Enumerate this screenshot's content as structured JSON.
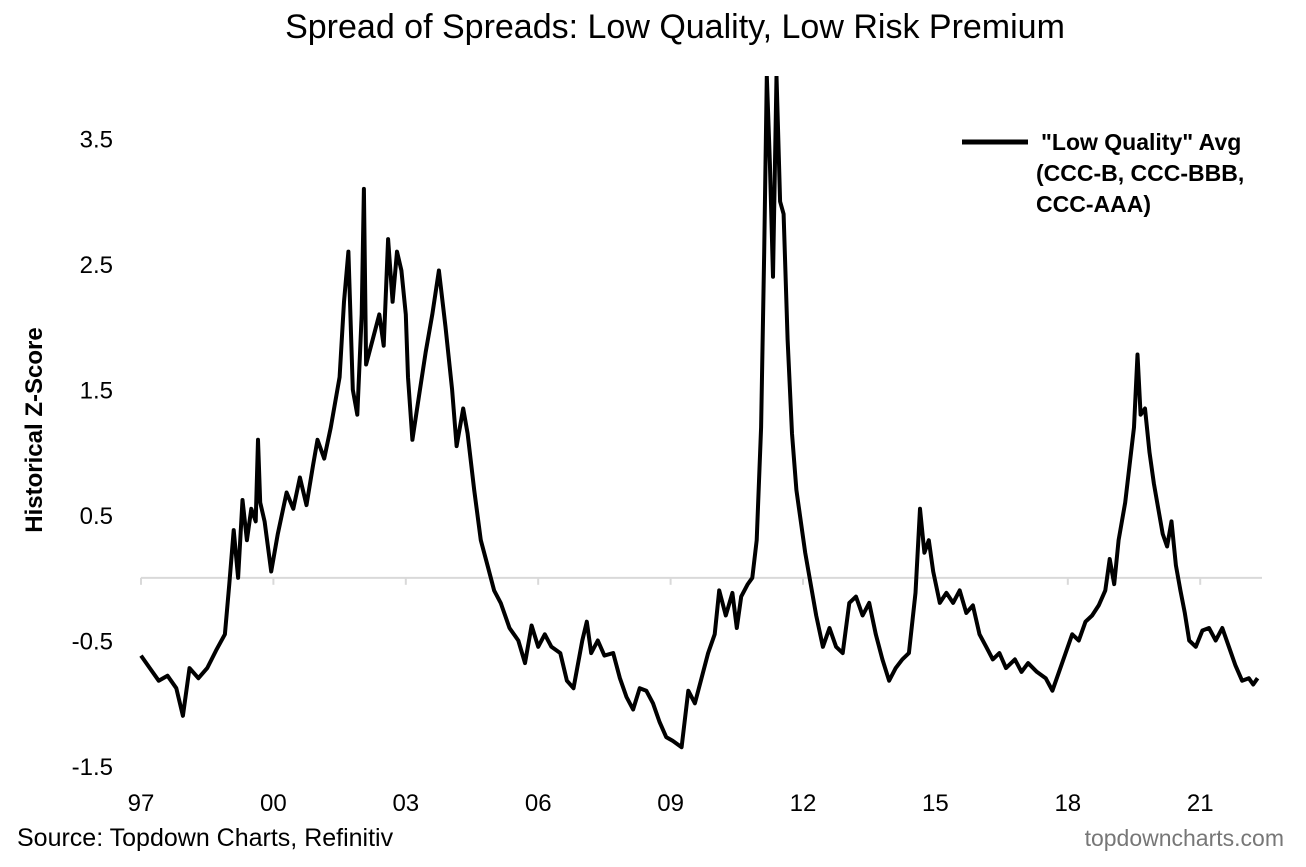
{
  "chart_data": {
    "type": "line",
    "title": "Spread of Spreads: Low Quality, Low Risk Premium",
    "ylabel": "Historical Z-Score",
    "xlabel": "",
    "ylim": [
      -1.5,
      4.0
    ],
    "xlim": [
      1997.0,
      2022.4
    ],
    "y_ticks": [
      {
        "value": 3.5,
        "label": "3.5"
      },
      {
        "value": 2.5,
        "label": "2.5"
      },
      {
        "value": 1.5,
        "label": "1.5"
      },
      {
        "value": 0.5,
        "label": "0.5"
      },
      {
        "value": -0.5,
        "label": "-0.5"
      },
      {
        "value": -1.5,
        "label": "-1.5"
      }
    ],
    "x_ticks": [
      {
        "value": 1997,
        "label": "97"
      },
      {
        "value": 2000,
        "label": "00"
      },
      {
        "value": 2003,
        "label": "03"
      },
      {
        "value": 2006,
        "label": "06"
      },
      {
        "value": 2009,
        "label": "09"
      },
      {
        "value": 2012,
        "label": "12"
      },
      {
        "value": 2015,
        "label": "15"
      },
      {
        "value": 2018,
        "label": "18"
      },
      {
        "value": 2021,
        "label": "21"
      }
    ],
    "zero_line": 0,
    "grid": false,
    "legend": {
      "placement": "top-right",
      "lines": [
        "\"Low Quality\" Avg",
        "(CCC-B, CCC-BBB,",
        "CCC-AAA)"
      ]
    },
    "series": [
      {
        "name": "\"Low Quality\" Avg",
        "color": "#000000",
        "points": [
          [
            1997.0,
            -0.62
          ],
          [
            1997.2,
            -0.72
          ],
          [
            1997.4,
            -0.82
          ],
          [
            1997.6,
            -0.78
          ],
          [
            1997.8,
            -0.88
          ],
          [
            1997.95,
            -1.1
          ],
          [
            1998.1,
            -0.72
          ],
          [
            1998.3,
            -0.8
          ],
          [
            1998.5,
            -0.72
          ],
          [
            1998.7,
            -0.58
          ],
          [
            1998.9,
            -0.45
          ],
          [
            1999.0,
            -0.05
          ],
          [
            1999.1,
            0.38
          ],
          [
            1999.2,
            0.0
          ],
          [
            1999.3,
            0.62
          ],
          [
            1999.4,
            0.3
          ],
          [
            1999.5,
            0.55
          ],
          [
            1999.6,
            0.45
          ],
          [
            1999.65,
            1.1
          ],
          [
            1999.7,
            0.6
          ],
          [
            1999.8,
            0.45
          ],
          [
            1999.95,
            0.05
          ],
          [
            2000.1,
            0.35
          ],
          [
            2000.3,
            0.68
          ],
          [
            2000.45,
            0.55
          ],
          [
            2000.6,
            0.8
          ],
          [
            2000.75,
            0.58
          ],
          [
            2000.9,
            0.9
          ],
          [
            2001.0,
            1.1
          ],
          [
            2001.15,
            0.95
          ],
          [
            2001.3,
            1.2
          ],
          [
            2001.5,
            1.6
          ],
          [
            2001.6,
            2.2
          ],
          [
            2001.7,
            2.6
          ],
          [
            2001.8,
            1.5
          ],
          [
            2001.9,
            1.3
          ],
          [
            2002.0,
            2.1
          ],
          [
            2002.05,
            3.1
          ],
          [
            2002.1,
            1.7
          ],
          [
            2002.25,
            1.9
          ],
          [
            2002.4,
            2.1
          ],
          [
            2002.5,
            1.85
          ],
          [
            2002.6,
            2.7
          ],
          [
            2002.7,
            2.2
          ],
          [
            2002.8,
            2.6
          ],
          [
            2002.9,
            2.45
          ],
          [
            2003.0,
            2.1
          ],
          [
            2003.05,
            1.6
          ],
          [
            2003.15,
            1.1
          ],
          [
            2003.3,
            1.45
          ],
          [
            2003.45,
            1.8
          ],
          [
            2003.6,
            2.1
          ],
          [
            2003.75,
            2.45
          ],
          [
            2003.9,
            2.0
          ],
          [
            2004.05,
            1.5
          ],
          [
            2004.15,
            1.05
          ],
          [
            2004.3,
            1.35
          ],
          [
            2004.4,
            1.15
          ],
          [
            2004.55,
            0.7
          ],
          [
            2004.7,
            0.3
          ],
          [
            2004.85,
            0.1
          ],
          [
            2005.0,
            -0.1
          ],
          [
            2005.15,
            -0.2
          ],
          [
            2005.35,
            -0.4
          ],
          [
            2005.55,
            -0.5
          ],
          [
            2005.7,
            -0.68
          ],
          [
            2005.85,
            -0.38
          ],
          [
            2006.0,
            -0.55
          ],
          [
            2006.15,
            -0.45
          ],
          [
            2006.3,
            -0.55
          ],
          [
            2006.5,
            -0.6
          ],
          [
            2006.65,
            -0.82
          ],
          [
            2006.8,
            -0.88
          ],
          [
            2007.0,
            -0.5
          ],
          [
            2007.1,
            -0.35
          ],
          [
            2007.2,
            -0.6
          ],
          [
            2007.35,
            -0.5
          ],
          [
            2007.5,
            -0.62
          ],
          [
            2007.7,
            -0.6
          ],
          [
            2007.85,
            -0.8
          ],
          [
            2008.0,
            -0.95
          ],
          [
            2008.15,
            -1.05
          ],
          [
            2008.3,
            -0.88
          ],
          [
            2008.45,
            -0.9
          ],
          [
            2008.6,
            -1.0
          ],
          [
            2008.75,
            -1.15
          ],
          [
            2008.9,
            -1.27
          ],
          [
            2009.05,
            -1.3
          ],
          [
            2009.25,
            -1.35
          ],
          [
            2009.4,
            -0.9
          ],
          [
            2009.55,
            -1.0
          ],
          [
            2009.7,
            -0.8
          ],
          [
            2009.85,
            -0.6
          ],
          [
            2010.0,
            -0.45
          ],
          [
            2010.1,
            -0.1
          ],
          [
            2010.25,
            -0.3
          ],
          [
            2010.4,
            -0.12
          ],
          [
            2010.5,
            -0.4
          ],
          [
            2010.6,
            -0.15
          ],
          [
            2010.75,
            -0.05
          ],
          [
            2010.85,
            0.0
          ],
          [
            2010.95,
            0.3
          ],
          [
            2011.05,
            1.2
          ],
          [
            2011.12,
            2.6
          ],
          [
            2011.18,
            4.0
          ],
          [
            2011.25,
            3.3
          ],
          [
            2011.32,
            2.4
          ],
          [
            2011.4,
            4.0
          ],
          [
            2011.48,
            3.0
          ],
          [
            2011.56,
            2.9
          ],
          [
            2011.65,
            1.9
          ],
          [
            2011.75,
            1.15
          ],
          [
            2011.85,
            0.7
          ],
          [
            2011.95,
            0.45
          ],
          [
            2012.05,
            0.2
          ],
          [
            2012.15,
            0.0
          ],
          [
            2012.3,
            -0.3
          ],
          [
            2012.45,
            -0.55
          ],
          [
            2012.6,
            -0.4
          ],
          [
            2012.75,
            -0.55
          ],
          [
            2012.9,
            -0.6
          ],
          [
            2013.05,
            -0.2
          ],
          [
            2013.2,
            -0.15
          ],
          [
            2013.35,
            -0.3
          ],
          [
            2013.5,
            -0.2
          ],
          [
            2013.65,
            -0.45
          ],
          [
            2013.8,
            -0.65
          ],
          [
            2013.95,
            -0.82
          ],
          [
            2014.1,
            -0.72
          ],
          [
            2014.25,
            -0.65
          ],
          [
            2014.4,
            -0.6
          ],
          [
            2014.55,
            -0.12
          ],
          [
            2014.65,
            0.55
          ],
          [
            2014.75,
            0.2
          ],
          [
            2014.85,
            0.3
          ],
          [
            2014.95,
            0.05
          ],
          [
            2015.1,
            -0.2
          ],
          [
            2015.25,
            -0.12
          ],
          [
            2015.4,
            -0.2
          ],
          [
            2015.55,
            -0.1
          ],
          [
            2015.7,
            -0.28
          ],
          [
            2015.85,
            -0.22
          ],
          [
            2016.0,
            -0.45
          ],
          [
            2016.15,
            -0.55
          ],
          [
            2016.3,
            -0.65
          ],
          [
            2016.45,
            -0.6
          ],
          [
            2016.6,
            -0.72
          ],
          [
            2016.8,
            -0.65
          ],
          [
            2016.95,
            -0.75
          ],
          [
            2017.1,
            -0.68
          ],
          [
            2017.3,
            -0.75
          ],
          [
            2017.5,
            -0.8
          ],
          [
            2017.65,
            -0.9
          ],
          [
            2017.8,
            -0.75
          ],
          [
            2017.95,
            -0.6
          ],
          [
            2018.1,
            -0.45
          ],
          [
            2018.25,
            -0.5
          ],
          [
            2018.4,
            -0.35
          ],
          [
            2018.55,
            -0.3
          ],
          [
            2018.7,
            -0.22
          ],
          [
            2018.85,
            -0.1
          ],
          [
            2018.95,
            0.15
          ],
          [
            2019.05,
            -0.05
          ],
          [
            2019.15,
            0.3
          ],
          [
            2019.3,
            0.6
          ],
          [
            2019.4,
            0.9
          ],
          [
            2019.5,
            1.2
          ],
          [
            2019.58,
            1.78
          ],
          [
            2019.65,
            1.3
          ],
          [
            2019.75,
            1.35
          ],
          [
            2019.85,
            1.0
          ],
          [
            2019.95,
            0.75
          ],
          [
            2020.05,
            0.55
          ],
          [
            2020.15,
            0.35
          ],
          [
            2020.25,
            0.25
          ],
          [
            2020.35,
            0.45
          ],
          [
            2020.45,
            0.1
          ],
          [
            2020.55,
            -0.1
          ],
          [
            2020.65,
            -0.28
          ],
          [
            2020.75,
            -0.5
          ],
          [
            2020.9,
            -0.55
          ],
          [
            2021.05,
            -0.42
          ],
          [
            2021.2,
            -0.4
          ],
          [
            2021.35,
            -0.5
          ],
          [
            2021.5,
            -0.4
          ],
          [
            2021.65,
            -0.55
          ],
          [
            2021.8,
            -0.7
          ],
          [
            2021.95,
            -0.82
          ],
          [
            2022.1,
            -0.8
          ],
          [
            2022.2,
            -0.85
          ],
          [
            2022.3,
            -0.8
          ]
        ]
      }
    ],
    "source": "Source: Topdown Charts, Refinitiv",
    "watermark": "topdowncharts.com"
  }
}
